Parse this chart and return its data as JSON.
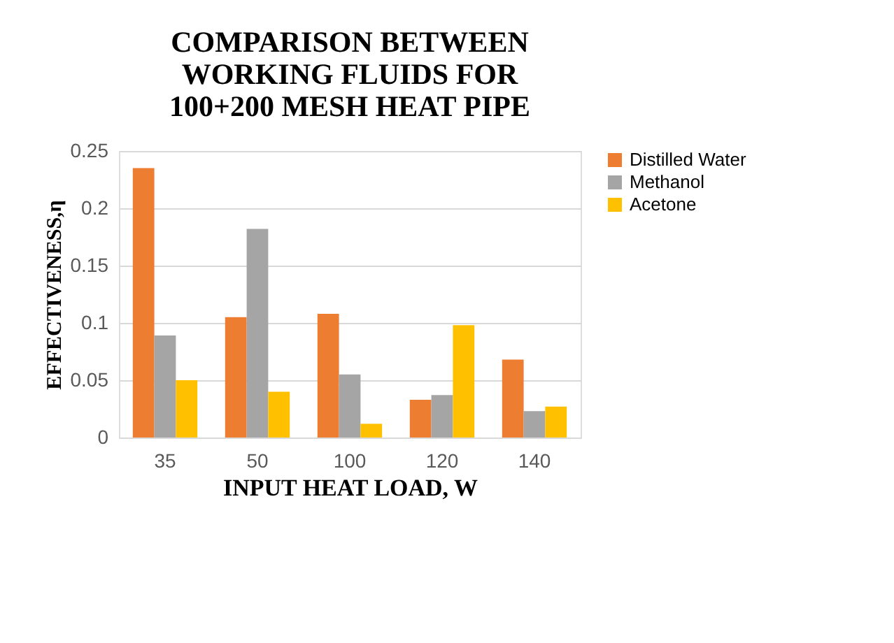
{
  "chart_data": {
    "type": "bar",
    "title": [
      "COMPARISON BETWEEN",
      "WORKING FLUIDS FOR",
      "100+200 MESH HEAT PIPE"
    ],
    "xlabel": "INPUT HEAT LOAD, W",
    "ylabel": "EFFECTIVENESS,η",
    "categories": [
      "35",
      "50",
      "100",
      "120",
      "140"
    ],
    "series": [
      {
        "name": "Distilled Water",
        "color": "#ed7d31",
        "values": [
          0.235,
          0.105,
          0.108,
          0.033,
          0.068
        ]
      },
      {
        "name": "Methanol",
        "color": "#a5a5a5",
        "values": [
          0.089,
          0.182,
          0.055,
          0.037,
          0.023
        ]
      },
      {
        "name": "Acetone",
        "color": "#ffc000",
        "values": [
          0.05,
          0.04,
          0.012,
          0.098,
          0.027
        ]
      }
    ],
    "ylim": [
      0,
      0.25
    ],
    "yticks": [
      0,
      0.05,
      0.1,
      0.15,
      0.2,
      0.25
    ],
    "grid": "y",
    "legend": "right"
  }
}
